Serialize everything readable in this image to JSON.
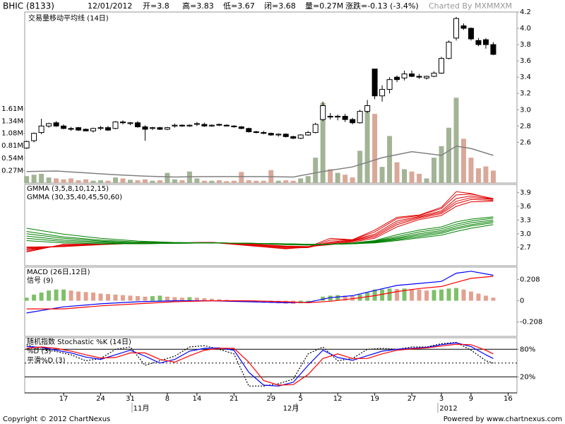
{
  "header": {
    "symbol": "BHIC (8133)",
    "date": "12/01/2012",
    "open": "开=3.8",
    "high": "高=3.83",
    "low": "低=3.67",
    "close": "闭=3.68",
    "volume": "量=0.27M",
    "change": "涨跌=-0.13 (-3.4%)",
    "credit": "Charted By MXMMXM"
  },
  "footer": {
    "copyright": "Copyright © 2012 ChartNexus",
    "powered": "Powered by www.chartnexus.com"
  },
  "axis_months": [
    "11月",
    "12月",
    "2012"
  ],
  "chart_data": [
    {
      "type": "candlestick",
      "up_color": "#ffffff",
      "down_color": "#000000",
      "open": [
        2.53,
        2.62,
        2.72,
        2.8,
        2.84,
        2.8,
        2.77,
        2.78,
        2.76,
        2.74,
        2.77,
        2.78,
        2.77,
        2.85,
        2.83,
        2.84,
        2.79,
        2.77,
        2.78,
        2.76,
        2.8,
        2.81,
        2.8,
        2.82,
        2.82,
        2.8,
        2.82,
        2.81,
        2.8,
        2.79,
        2.77,
        2.73,
        2.72,
        2.71,
        2.69,
        2.7,
        2.67,
        2.65,
        2.69,
        2.72,
        2.88,
        2.92,
        2.91,
        2.92,
        2.88,
        2.84,
        2.98,
        3.5,
        3.17,
        3.25,
        3.4,
        3.39,
        3.44,
        3.41,
        3.39,
        3.41,
        3.45,
        3.63,
        3.88,
        4.03,
        4.0,
        3.85,
        3.86,
        3.8
      ],
      "high": [
        2.62,
        2.72,
        2.89,
        2.84,
        2.86,
        2.82,
        2.79,
        2.79,
        2.77,
        2.78,
        2.8,
        2.8,
        2.86,
        2.87,
        2.85,
        2.86,
        2.81,
        2.79,
        2.79,
        2.79,
        2.83,
        2.82,
        2.82,
        2.85,
        2.84,
        2.82,
        2.83,
        2.82,
        2.81,
        2.8,
        2.78,
        2.74,
        2.74,
        2.72,
        2.71,
        2.71,
        2.68,
        2.7,
        2.74,
        2.84,
        3.1,
        2.96,
        2.94,
        2.95,
        2.9,
        3.0,
        3.12,
        3.5,
        3.3,
        3.4,
        3.42,
        3.48,
        3.48,
        3.44,
        3.42,
        3.47,
        3.65,
        3.85,
        4.14,
        4.06,
        4.01,
        3.88,
        3.88,
        3.83
      ],
      "low": [
        2.52,
        2.6,
        2.7,
        2.78,
        2.79,
        2.76,
        2.74,
        2.74,
        2.74,
        2.72,
        2.75,
        2.74,
        2.76,
        2.82,
        2.81,
        2.78,
        2.62,
        2.75,
        2.75,
        2.75,
        2.78,
        2.79,
        2.79,
        2.8,
        2.79,
        2.79,
        2.8,
        2.8,
        2.78,
        2.76,
        2.72,
        2.71,
        2.7,
        2.68,
        2.67,
        2.66,
        2.64,
        2.64,
        2.68,
        2.71,
        2.86,
        2.88,
        2.87,
        2.85,
        2.82,
        2.83,
        2.96,
        3.13,
        3.1,
        3.2,
        3.34,
        3.36,
        3.4,
        3.38,
        3.37,
        3.4,
        3.44,
        3.62,
        3.85,
        3.98,
        3.85,
        3.78,
        3.75,
        3.67
      ],
      "close": [
        2.61,
        2.71,
        2.8,
        2.83,
        2.8,
        2.77,
        2.76,
        2.75,
        2.74,
        2.77,
        2.78,
        2.75,
        2.85,
        2.84,
        2.84,
        2.79,
        2.76,
        2.78,
        2.76,
        2.78,
        2.81,
        2.8,
        2.81,
        2.83,
        2.8,
        2.81,
        2.81,
        2.8,
        2.79,
        2.77,
        2.73,
        2.72,
        2.71,
        2.69,
        2.7,
        2.67,
        2.65,
        2.69,
        2.72,
        2.82,
        3.05,
        2.91,
        2.92,
        2.88,
        2.84,
        2.98,
        3.05,
        3.17,
        3.25,
        3.37,
        3.37,
        3.44,
        3.41,
        3.4,
        3.41,
        3.45,
        3.63,
        3.83,
        4.12,
        4.0,
        3.87,
        3.8,
        3.8,
        3.68
      ],
      "ylim": [
        2.1,
        4.2
      ],
      "yticks": [
        2.6,
        2.8,
        {
          "value": 3,
          "label": "3.0"
        },
        3.2,
        3.4,
        3.6,
        3.8,
        {
          "value": 4,
          "label": "4.0"
        },
        4.2
      ],
      "volume": {
        "up_color": "#a3b496",
        "down_color": "#d9a898",
        "values": [
          0.15,
          0.18,
          0.2,
          0.12,
          0.1,
          0.08,
          0.1,
          0.06,
          0.08,
          0.05,
          0.06,
          0.05,
          0.12,
          0.1,
          0.07,
          0.06,
          0.08,
          0.05,
          0.06,
          0.22,
          0.08,
          0.06,
          0.25,
          0.1,
          0.05,
          0.05,
          0.06,
          0.04,
          0.05,
          0.24,
          0.06,
          0.05,
          0.05,
          0.28,
          0.05,
          0.06,
          0.05,
          0.1,
          0.15,
          0.55,
          1.74,
          0.3,
          0.22,
          0.18,
          0.12,
          0.7,
          1.58,
          1.5,
          0.35,
          1.02,
          0.45,
          0.3,
          0.25,
          0.2,
          0.1,
          0.55,
          0.8,
          1.2,
          1.85,
          0.96,
          0.55,
          0.32,
          0.36,
          0.27
        ],
        "ylim": [
          0,
          3.71
        ],
        "yticks": [
          {
            "value": 0.27,
            "label": "0.27M"
          },
          {
            "value": 0.54,
            "label": "0.54M"
          },
          {
            "value": 0.81,
            "label": "0.81M"
          },
          {
            "value": 1.08,
            "label": "1.08M"
          },
          {
            "value": 1.34,
            "label": "1.34M"
          },
          {
            "value": 1.61,
            "label": "1.61M"
          }
        ],
        "ma": {
          "name": "交易量移动平均线 (14日)",
          "color": "#808080",
          "x": [
            0,
            4,
            8,
            12,
            16,
            20,
            24,
            28,
            32,
            36,
            40,
            44,
            48,
            52,
            56,
            58,
            60,
            63
          ],
          "values": [
            0.25,
            0.26,
            0.22,
            0.18,
            0.15,
            0.13,
            0.14,
            0.14,
            0.14,
            0.13,
            0.25,
            0.35,
            0.55,
            0.68,
            0.6,
            0.8,
            0.75,
            0.6
          ]
        }
      }
    },
    {
      "type": "gmma",
      "x": [
        0,
        5,
        10,
        15,
        20,
        25,
        30,
        35,
        38,
        41,
        44,
        47,
        50,
        53,
        56,
        58,
        60,
        63
      ],
      "ylim": [
        2.3,
        4.08
      ],
      "yticks": [
        2.7,
        {
          "value": 3,
          "label": "3.0"
        },
        3.3,
        3.6,
        3.9
      ],
      "groups": [
        {
          "name": "GMMA (3,5,8,10,12,15)",
          "color": "#e00000",
          "lines": [
            [
              2.6,
              2.77,
              2.77,
              2.8,
              2.8,
              2.81,
              2.74,
              2.67,
              2.71,
              2.9,
              2.87,
              3.08,
              3.36,
              3.41,
              3.58,
              3.92,
              3.88,
              3.76
            ],
            [
              2.62,
              2.76,
              2.77,
              2.8,
              2.8,
              2.81,
              2.75,
              2.68,
              2.7,
              2.86,
              2.87,
              3.04,
              3.33,
              3.4,
              3.55,
              3.85,
              3.87,
              3.77
            ],
            [
              2.65,
              2.74,
              2.77,
              2.8,
              2.8,
              2.81,
              2.76,
              2.7,
              2.7,
              2.82,
              2.86,
              2.99,
              3.28,
              3.38,
              3.5,
              3.77,
              3.83,
              3.76
            ],
            [
              2.67,
              2.73,
              2.77,
              2.79,
              2.8,
              2.81,
              2.77,
              2.71,
              2.7,
              2.8,
              2.85,
              2.96,
              3.24,
              3.36,
              3.47,
              3.71,
              3.79,
              3.75
            ],
            [
              2.69,
              2.72,
              2.77,
              2.79,
              2.8,
              2.81,
              2.78,
              2.72,
              2.71,
              2.78,
              2.84,
              2.93,
              3.2,
              3.34,
              3.44,
              3.66,
              3.75,
              3.73
            ],
            [
              2.71,
              2.72,
              2.76,
              2.79,
              2.8,
              2.8,
              2.78,
              2.73,
              2.72,
              2.76,
              2.82,
              2.9,
              3.15,
              3.31,
              3.4,
              3.6,
              3.7,
              3.71
            ]
          ]
        },
        {
          "name": "GMMA (30,35,40,45,50,60)",
          "color": "#008000",
          "lines": [
            [
              2.85,
              2.8,
              2.78,
              2.78,
              2.79,
              2.8,
              2.79,
              2.76,
              2.75,
              2.77,
              2.8,
              2.85,
              2.98,
              3.08,
              3.15,
              3.26,
              3.32,
              3.37
            ],
            [
              2.9,
              2.83,
              2.8,
              2.78,
              2.79,
              2.8,
              2.79,
              2.77,
              2.76,
              2.77,
              2.79,
              2.84,
              2.94,
              3.04,
              3.11,
              3.21,
              3.28,
              3.34
            ],
            [
              2.95,
              2.86,
              2.82,
              2.79,
              2.79,
              2.8,
              2.79,
              2.77,
              2.76,
              2.77,
              2.79,
              2.83,
              2.91,
              3.0,
              3.07,
              3.17,
              3.24,
              3.3
            ],
            [
              3.0,
              2.9,
              2.84,
              2.8,
              2.8,
              2.8,
              2.79,
              2.77,
              2.77,
              2.77,
              2.79,
              2.82,
              2.89,
              2.97,
              3.04,
              3.13,
              3.2,
              3.27
            ],
            [
              3.05,
              2.93,
              2.86,
              2.82,
              2.8,
              2.8,
              2.79,
              2.78,
              2.77,
              2.77,
              2.78,
              2.81,
              2.87,
              2.94,
              3.01,
              3.1,
              3.17,
              3.24
            ],
            [
              3.12,
              2.99,
              2.9,
              2.84,
              2.81,
              2.8,
              2.79,
              2.78,
              2.77,
              2.77,
              2.78,
              2.8,
              2.85,
              2.91,
              2.97,
              3.05,
              3.12,
              3.2
            ]
          ]
        }
      ]
    },
    {
      "type": "macd",
      "ylim": [
        -0.35,
        0.33
      ],
      "yticks": [
        0.208,
        0,
        -0.208
      ],
      "histogram": {
        "rising_color": "#7fbf6a",
        "falling_color": "#e3a090",
        "values": [
          0.03,
          0.06,
          0.08,
          0.1,
          0.11,
          0.11,
          0.1,
          0.09,
          0.085,
          0.08,
          0.07,
          0.065,
          0.06,
          0.055,
          0.05,
          0.045,
          0.04,
          0.045,
          0.05,
          0.04,
          0.035,
          0.03,
          0.035,
          0.03,
          0.025,
          0.02,
          0.015,
          0.01,
          0.005,
          -0.005,
          -0.01,
          -0.015,
          -0.02,
          -0.022,
          -0.025,
          -0.028,
          -0.03,
          -0.025,
          -0.015,
          0.005,
          0.04,
          0.05,
          0.055,
          0.05,
          0.045,
          0.06,
          0.08,
          0.11,
          0.11,
          0.12,
          0.115,
          0.12,
          0.115,
          0.11,
          0.1,
          0.105,
          0.11,
          0.12,
          0.125,
          0.11,
          0.09,
          0.07,
          0.05,
          0.03
        ]
      },
      "x": [
        0,
        5,
        10,
        15,
        20,
        25,
        30,
        35,
        38,
        41,
        44,
        47,
        50,
        53,
        56,
        58,
        60,
        63
      ],
      "series": [
        {
          "name": "MACD (26日,12日)",
          "color": "#0000ff",
          "values": [
            -0.12,
            -0.06,
            -0.03,
            -0.01,
            0.0,
            0.0,
            -0.01,
            -0.02,
            -0.015,
            0.03,
            0.05,
            0.1,
            0.15,
            0.17,
            0.19,
            0.27,
            0.29,
            0.25
          ]
        },
        {
          "name": "信号 (9)",
          "color": "#ff0000",
          "values": [
            -0.08,
            -0.08,
            -0.05,
            -0.03,
            -0.01,
            0.0,
            0.0,
            -0.01,
            -0.02,
            -0.005,
            0.02,
            0.05,
            0.09,
            0.12,
            0.14,
            0.18,
            0.22,
            0.24
          ]
        }
      ]
    },
    {
      "type": "stochastic",
      "ylim": [
        -15,
        105
      ],
      "yticks": [
        {
          "value": 80,
          "label": "80%"
        },
        {
          "value": 20,
          "label": "20%"
        }
      ],
      "grid": true,
      "midline": 50,
      "xlim": [
        -0.25,
        66.2
      ],
      "xticks": [
        {
          "value": 5,
          "label": "17"
        },
        {
          "value": 10,
          "label": "24"
        },
        {
          "value": 14,
          "label": "31"
        },
        {
          "value": 19,
          "label": "8"
        },
        {
          "value": 23,
          "label": "14"
        },
        {
          "value": 28,
          "label": "21"
        },
        {
          "value": 33,
          "label": "29"
        },
        {
          "value": 37,
          "label": "5"
        },
        {
          "value": 42,
          "label": "12"
        },
        {
          "value": 47,
          "label": "19"
        },
        {
          "value": 52,
          "label": "27"
        },
        {
          "value": 56,
          "label": "3"
        },
        {
          "value": 60,
          "label": "9"
        },
        {
          "value": 65,
          "label": "16"
        }
      ],
      "x": [
        0,
        2,
        4,
        6,
        8,
        10,
        12,
        14,
        16,
        18,
        20,
        22,
        24,
        26,
        28,
        30,
        32,
        34,
        36,
        38,
        40,
        42,
        44,
        46,
        48,
        50,
        52,
        54,
        56,
        58,
        60,
        62,
        63
      ],
      "series": [
        {
          "name": "随机指数 Stochastic %K (14日)",
          "color": "#000000",
          "dashed": true,
          "values": [
            90,
            80,
            75,
            68,
            55,
            60,
            80,
            85,
            45,
            55,
            65,
            85,
            88,
            80,
            70,
            0,
            0,
            5,
            15,
            70,
            85,
            55,
            60,
            80,
            82,
            80,
            85,
            85,
            92,
            95,
            78,
            55,
            50
          ]
        },
        {
          "name": "%D (3)",
          "color": "#0000ff",
          "values": [
            86,
            84,
            78,
            72,
            63,
            58,
            68,
            78,
            65,
            50,
            58,
            76,
            82,
            83,
            78,
            30,
            2,
            0,
            8,
            45,
            78,
            62,
            56,
            66,
            76,
            80,
            82,
            84,
            90,
            94,
            86,
            68,
            60
          ]
        },
        {
          "name": "平滑%D (3)",
          "color": "#ff0000",
          "values": [
            82,
            85,
            82,
            76,
            68,
            61,
            62,
            72,
            72,
            58,
            52,
            66,
            78,
            82,
            82,
            52,
            12,
            2,
            3,
            25,
            60,
            70,
            60,
            60,
            70,
            78,
            81,
            83,
            87,
            91,
            90,
            78,
            70
          ]
        }
      ]
    }
  ]
}
